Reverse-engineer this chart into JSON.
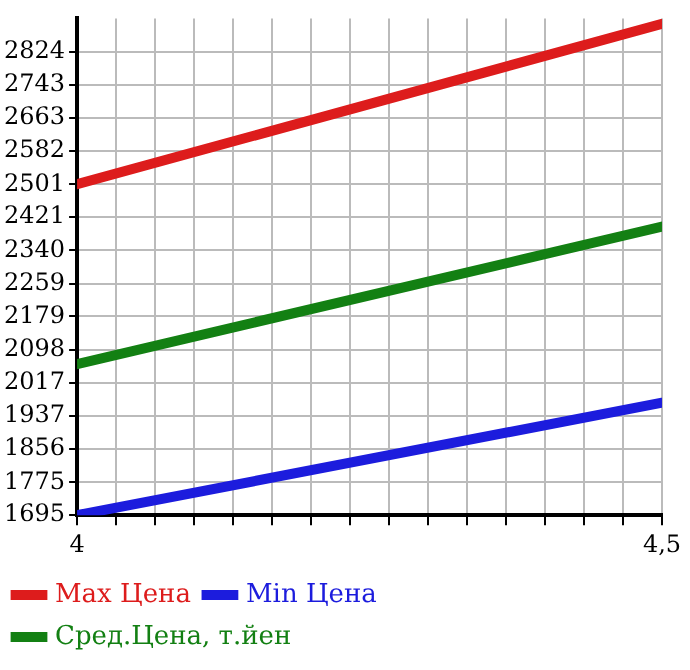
{
  "chart_data": {
    "type": "line",
    "x": [
      4,
      4.5
    ],
    "series": [
      {
        "name": "Max Цена",
        "color": "#dd1c1c",
        "values": [
          2501,
          2892
        ]
      },
      {
        "name": "Min Цена",
        "color": "#1c1cdd",
        "values": [
          1695,
          1969
        ]
      },
      {
        "name": "Сред.Цена, т.йен",
        "color": "#138013",
        "values": [
          2063,
          2398
        ]
      }
    ],
    "xlim": [
      4,
      4.5
    ],
    "xticks": [
      4,
      {
        "value": 4.033,
        "label": null
      },
      {
        "value": 4.067,
        "label": null
      },
      {
        "value": 4.1,
        "label": null
      },
      {
        "value": 4.133,
        "label": null
      },
      {
        "value": 4.167,
        "label": null
      },
      {
        "value": 4.2,
        "label": null
      },
      {
        "value": 4.233,
        "label": null
      },
      {
        "value": 4.267,
        "label": null
      },
      {
        "value": 4.3,
        "label": null
      },
      {
        "value": 4.333,
        "label": null
      },
      {
        "value": 4.367,
        "label": null
      },
      {
        "value": 4.4,
        "label": null
      },
      {
        "value": 4.433,
        "label": null
      },
      {
        "value": 4.467,
        "label": null
      },
      {
        "value": 4.5,
        "label": "4,5"
      }
    ],
    "ylim": [
      1695,
      2905
    ],
    "yticks": [
      1695,
      1775,
      1856,
      1937,
      2017,
      2098,
      2179,
      2259,
      2340,
      2421,
      2501,
      2582,
      2663,
      2743,
      2824
    ],
    "grid": true,
    "legend": "bottom",
    "marker": "none",
    "line_style": "solid"
  }
}
